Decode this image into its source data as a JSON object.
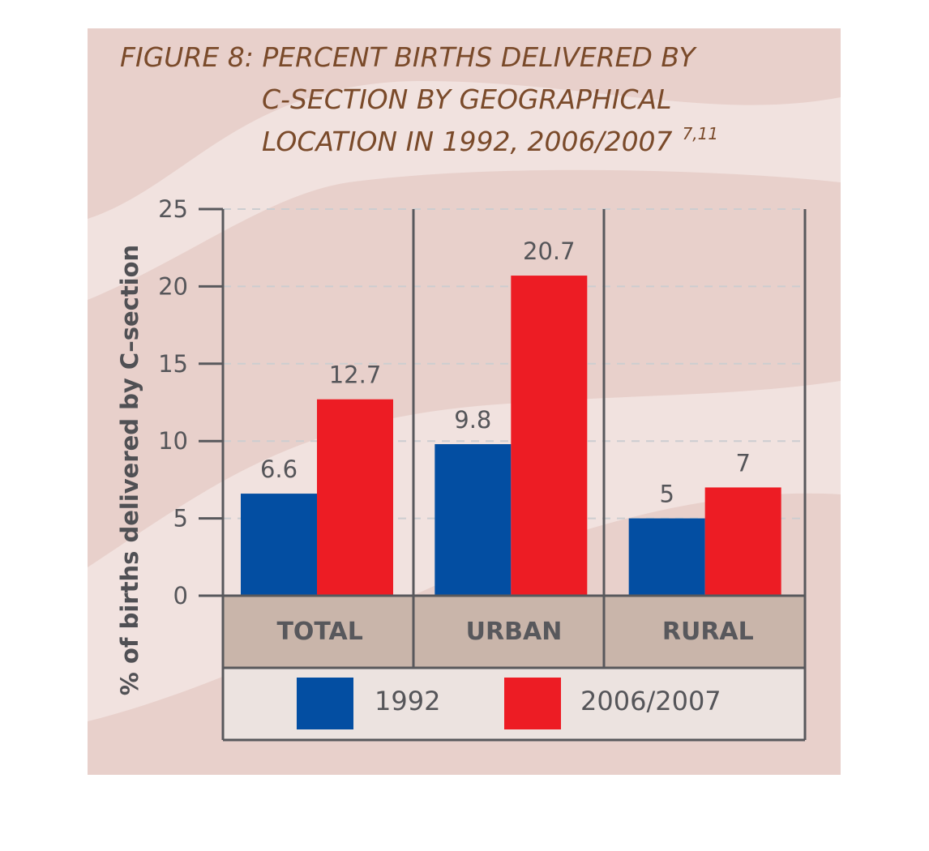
{
  "chart_data": {
    "type": "bar",
    "title_lines": [
      "FIGURE 8: PERCENT BIRTHS DELIVERED BY",
      "C-SECTION BY GEOGRAPHICAL",
      "LOCATION IN 1992, 2006/2007"
    ],
    "title_superscript": "7,11",
    "ylabel": "% of births delivered by C–section",
    "xlabel": "",
    "ylim": [
      0,
      25
    ],
    "yticks": [
      "0",
      "5",
      "10",
      "15",
      "20",
      "25"
    ],
    "grid": "horizontal dashed",
    "categories": [
      "TOTAL",
      "URBAN",
      "RURAL"
    ],
    "series": [
      {
        "name": "1992",
        "color": "#034ea2",
        "values": [
          6.6,
          9.8,
          5
        ],
        "labels": [
          "6.6",
          "9.8",
          "5"
        ]
      },
      {
        "name": "2006/2007",
        "color": "#ed1c24",
        "values": [
          12.7,
          20.7,
          7
        ],
        "labels": [
          "12.7",
          "20.7",
          "7"
        ]
      }
    ],
    "legend_position": "bottom"
  },
  "colors": {
    "panel_background": "#e8d0cb",
    "light_wave": "#f1e2df",
    "category_band": "#c9b5aa",
    "legend_band": "#ece3e0",
    "axis": "#58585c",
    "grid": "#cccdd0",
    "title": "#7a4a2a"
  }
}
